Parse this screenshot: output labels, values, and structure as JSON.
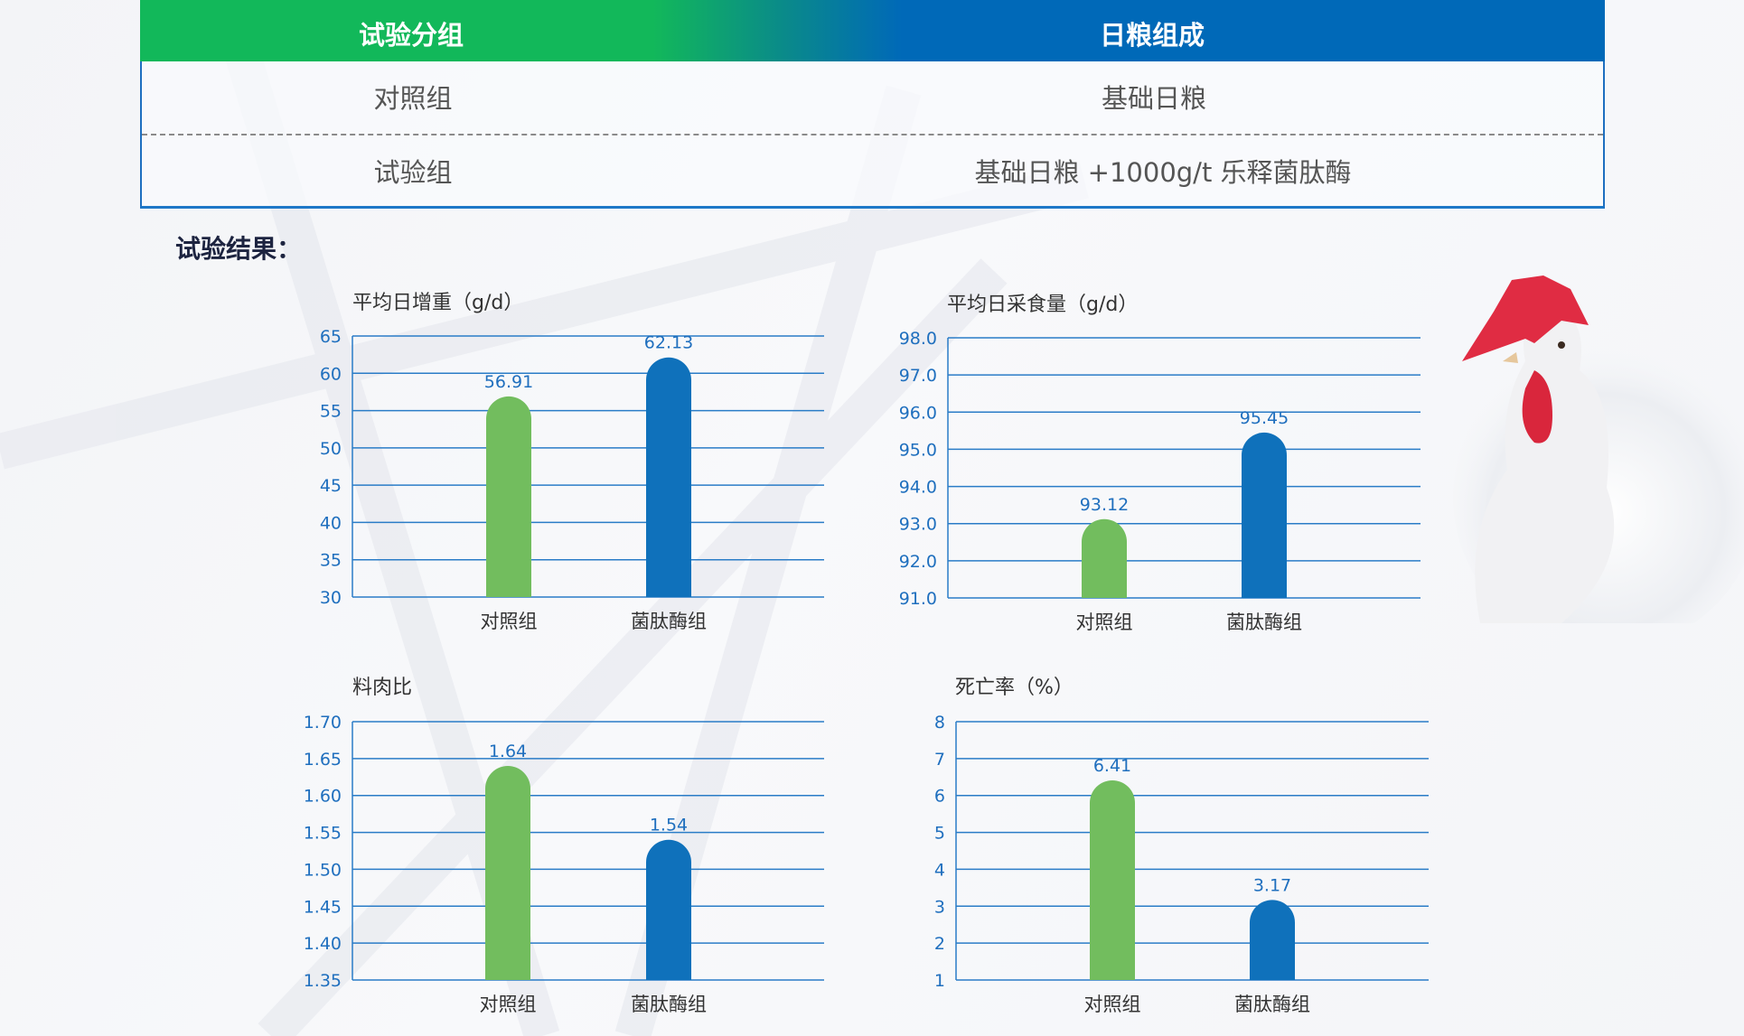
{
  "table": {
    "headers": [
      "试验分组",
      "日粮组成"
    ],
    "rows": [
      [
        "对照组",
        "基础日粮"
      ],
      [
        "试验组",
        "基础日粮 +1000g/t 乐释菌肽酶"
      ]
    ]
  },
  "results_heading": "试验结果：",
  "colors": {
    "control": "#72bd5e",
    "treatment": "#0f71bb",
    "grid": "#2a7cc7",
    "header_green": "#12b85a",
    "header_blue": "#0069b8"
  },
  "chart_data": [
    {
      "type": "bar",
      "title": "平均日增重（g/d）",
      "categories": [
        "对照组",
        "菌肽酶组"
      ],
      "values": [
        56.91,
        62.13
      ],
      "labels": [
        "56.91",
        "62.13"
      ],
      "ylim": [
        30,
        65
      ],
      "ticks": [
        "30",
        "35",
        "40",
        "45",
        "50",
        "55",
        "60",
        "65"
      ],
      "grid": true
    },
    {
      "type": "bar",
      "title": "平均日采食量（g/d）",
      "categories": [
        "对照组",
        "菌肽酶组"
      ],
      "values": [
        93.12,
        95.45
      ],
      "labels": [
        "93.12",
        "95.45"
      ],
      "ylim": [
        91,
        98
      ],
      "ticks": [
        "91.0",
        "92.0",
        "93.0",
        "94.0",
        "95.0",
        "96.0",
        "97.0",
        "98.0"
      ],
      "grid": true
    },
    {
      "type": "bar",
      "title": "料肉比",
      "categories": [
        "对照组",
        "菌肽酶组"
      ],
      "values": [
        1.64,
        1.54
      ],
      "labels": [
        "1.64",
        "1.54"
      ],
      "ylim": [
        1.35,
        1.7
      ],
      "ticks": [
        "1.35",
        "1.40",
        "1.45",
        "1.50",
        "1.55",
        "1.60",
        "1.65",
        "1.70"
      ],
      "grid": true
    },
    {
      "type": "bar",
      "title": "死亡率（%）",
      "categories": [
        "对照组",
        "菌肽酶组"
      ],
      "values": [
        6.41,
        3.17
      ],
      "labels": [
        "6.41",
        "3.17"
      ],
      "ylim": [
        1,
        8
      ],
      "ticks": [
        "1",
        "2",
        "3",
        "4",
        "5",
        "6",
        "7",
        "8"
      ],
      "grid": true
    }
  ]
}
